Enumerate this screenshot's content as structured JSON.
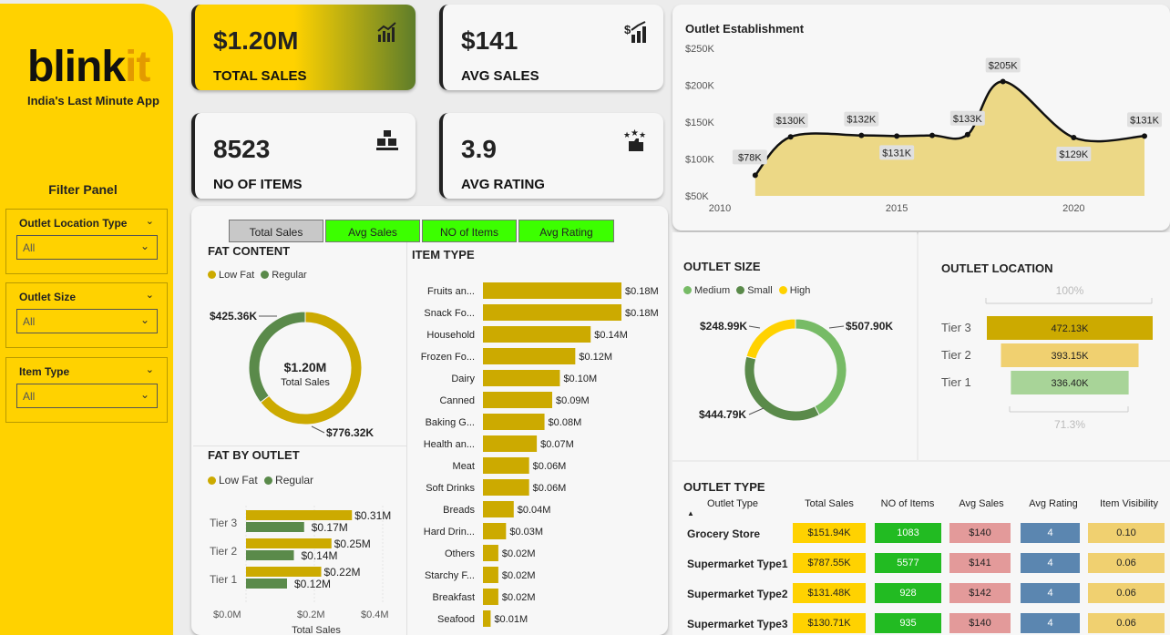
{
  "sidebar": {
    "logo_main": "blink",
    "logo_accent": "it",
    "tagline": "India's Last Minute App",
    "filter_title": "Filter Panel",
    "filters": [
      {
        "label": "Outlet Location Type",
        "value": "All"
      },
      {
        "label": "Outlet Size",
        "value": "All"
      },
      {
        "label": "Item Type",
        "value": "All"
      }
    ]
  },
  "kpis": {
    "total_sales": {
      "value": "$1.20M",
      "label": "TOTAL SALES"
    },
    "avg_sales": {
      "value": "$141",
      "label": "AVG SALES"
    },
    "no_items": {
      "value": "8523",
      "label": "NO OF ITEMS"
    },
    "avg_rating": {
      "value": "3.9",
      "label": "AVG RATING"
    }
  },
  "metric_tabs": [
    "Total Sales",
    "Avg Sales",
    "NO of Items",
    "Avg Rating"
  ],
  "colors": {
    "gold": "#ccaa00",
    "green": "#5a8a4a",
    "yellow": "#ffd200",
    "light_green": "#77bb66",
    "bright_green": "#22bb22",
    "pink": "#e39a9a",
    "blue": "#5b86b0",
    "pale_gold": "#f0d070"
  },
  "fat_content": {
    "title": "FAT CONTENT",
    "legend": [
      "Low Fat",
      "Regular"
    ],
    "center_value": "$1.20M",
    "center_label": "Total Sales",
    "low_fat_label": "$776.32K",
    "regular_label": "$425.36K"
  },
  "fat_by_outlet": {
    "title": "FAT BY OUTLET",
    "legend": [
      "Low Fat",
      "Regular"
    ],
    "axis_ticks": [
      "$0.0M",
      "$0.2M",
      "$0.4M"
    ],
    "xlabel": "Total Sales"
  },
  "item_type": {
    "title": "ITEM TYPE"
  },
  "outlet_establishment": {
    "title": "Outlet Establishment"
  },
  "outlet_size": {
    "title": "OUTLET SIZE",
    "legend": [
      "Medium",
      "Small",
      "High"
    ],
    "labels": {
      "medium": "$507.90K",
      "small": "$444.79K",
      "high": "$248.99K"
    }
  },
  "outlet_location": {
    "title": "OUTLET LOCATION",
    "top_pct": "100%",
    "bottom_pct": "71.3%",
    "tiers": [
      {
        "name": "Tier 3",
        "value": "472.13K"
      },
      {
        "name": "Tier 2",
        "value": "393.15K"
      },
      {
        "name": "Tier 1",
        "value": "336.40K"
      }
    ]
  },
  "outlet_type": {
    "title": "OUTLET TYPE",
    "headers": [
      "Outlet Type",
      "Total Sales",
      "NO of Items",
      "Avg Sales",
      "Avg Rating",
      "Item Visibility"
    ],
    "rows": [
      {
        "type": "Grocery Store",
        "total_sales": "$151.94K",
        "items": "1083",
        "avg_sales": "$140",
        "rating": "4",
        "visibility": "0.10"
      },
      {
        "type": "Supermarket Type1",
        "total_sales": "$787.55K",
        "items": "5577",
        "avg_sales": "$141",
        "rating": "4",
        "visibility": "0.06"
      },
      {
        "type": "Supermarket Type2",
        "total_sales": "$131.48K",
        "items": "928",
        "avg_sales": "$142",
        "rating": "4",
        "visibility": "0.06"
      },
      {
        "type": "Supermarket Type3",
        "total_sales": "$130.71K",
        "items": "935",
        "avg_sales": "$140",
        "rating": "4",
        "visibility": "0.06"
      }
    ]
  },
  "chart_data": [
    {
      "type": "pie",
      "title": "FAT CONTENT",
      "categories": [
        "Low Fat",
        "Regular"
      ],
      "values": [
        776.32,
        425.36
      ],
      "unit": "$K"
    },
    {
      "type": "bar",
      "title": "FAT BY OUTLET",
      "categories": [
        "Tier 3",
        "Tier 2",
        "Tier 1"
      ],
      "series": [
        {
          "name": "Low Fat",
          "values": [
            0.31,
            0.25,
            0.22
          ],
          "labels": [
            "$0.31M",
            "$0.25M",
            "$0.22M"
          ]
        },
        {
          "name": "Regular",
          "values": [
            0.17,
            0.14,
            0.12
          ],
          "labels": [
            "$0.17M",
            "$0.14M",
            "$0.12M"
          ]
        }
      ],
      "xlim": [
        0,
        0.4
      ],
      "xlabel": "Total Sales"
    },
    {
      "type": "bar",
      "title": "ITEM TYPE",
      "categories": [
        "Fruits an...",
        "Snack Fo...",
        "Household",
        "Frozen Fo...",
        "Dairy",
        "Canned",
        "Baking G...",
        "Health an...",
        "Meat",
        "Soft Drinks",
        "Breads",
        "Hard Drin...",
        "Others",
        "Starchy F...",
        "Breakfast",
        "Seafood"
      ],
      "values": [
        0.18,
        0.18,
        0.14,
        0.12,
        0.1,
        0.09,
        0.08,
        0.07,
        0.06,
        0.06,
        0.04,
        0.03,
        0.02,
        0.02,
        0.02,
        0.01
      ],
      "labels": [
        "$0.18M",
        "$0.18M",
        "$0.14M",
        "$0.12M",
        "$0.10M",
        "$0.09M",
        "$0.08M",
        "$0.07M",
        "$0.06M",
        "$0.06M",
        "$0.04M",
        "$0.03M",
        "$0.02M",
        "$0.02M",
        "$0.02M",
        "$0.01M"
      ]
    },
    {
      "type": "area",
      "title": "Outlet Establishment",
      "x": [
        2011,
        2012,
        2014,
        2015,
        2016,
        2017,
        2018,
        2020,
        2022
      ],
      "values": [
        78,
        130,
        132,
        131,
        132,
        133,
        205,
        129,
        131
      ],
      "labels": [
        "$78K",
        "$130K",
        "$132K",
        "$131K",
        "",
        "$133K",
        "$205K",
        "$129K",
        "$131K"
      ],
      "y_ticks": [
        "$250K",
        "$200K",
        "$150K",
        "$100K",
        "$50K"
      ],
      "x_ticks": [
        "2010",
        "2015",
        "2020"
      ],
      "ylim": [
        50,
        250
      ]
    },
    {
      "type": "pie",
      "title": "OUTLET SIZE",
      "categories": [
        "Medium",
        "Small",
        "High"
      ],
      "values": [
        507.9,
        444.79,
        248.99
      ],
      "unit": "$K"
    },
    {
      "type": "bar",
      "title": "OUTLET LOCATION",
      "categories": [
        "Tier 3",
        "Tier 2",
        "Tier 1"
      ],
      "values": [
        472.13,
        393.15,
        336.4
      ],
      "unit": "K"
    }
  ]
}
